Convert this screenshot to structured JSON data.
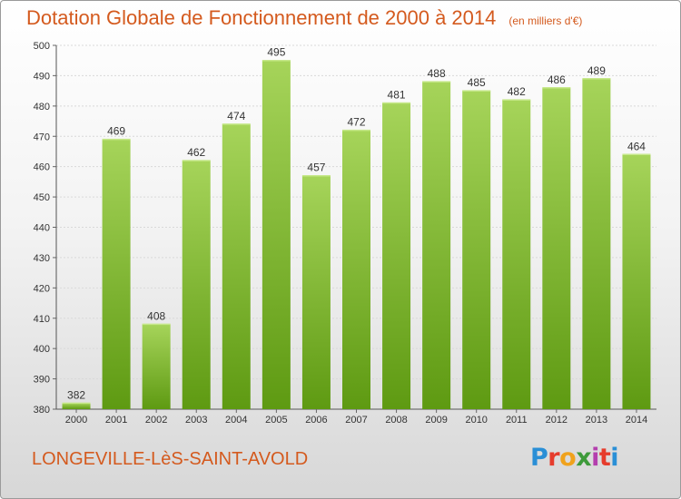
{
  "header": {
    "title": "Dotation Globale de Fonctionnement de 2000 à 2014",
    "unit": "(en milliers d'€)"
  },
  "footer": {
    "commune": "LONGEVILLE-LèS-SAINT-AVOLD",
    "logo_letters": [
      "P",
      "r",
      "o",
      "x",
      "i",
      "t",
      "i"
    ]
  },
  "chart_data": {
    "type": "bar",
    "title": "Dotation Globale de Fonctionnement de 2000 à 2014",
    "subtitle": "(en milliers d'€)",
    "xlabel": "",
    "ylabel": "",
    "categories": [
      "2000",
      "2001",
      "2002",
      "2003",
      "2004",
      "2005",
      "2006",
      "2007",
      "2008",
      "2009",
      "2010",
      "2011",
      "2012",
      "2013",
      "2014"
    ],
    "values": [
      382,
      469,
      408,
      462,
      474,
      495,
      457,
      472,
      481,
      488,
      485,
      482,
      486,
      489,
      464
    ],
    "ylim": [
      380,
      500
    ],
    "yticks": [
      380,
      390,
      400,
      410,
      420,
      430,
      440,
      450,
      460,
      470,
      480,
      490,
      500
    ],
    "grid": true,
    "bar_color": "#7fb82a"
  }
}
